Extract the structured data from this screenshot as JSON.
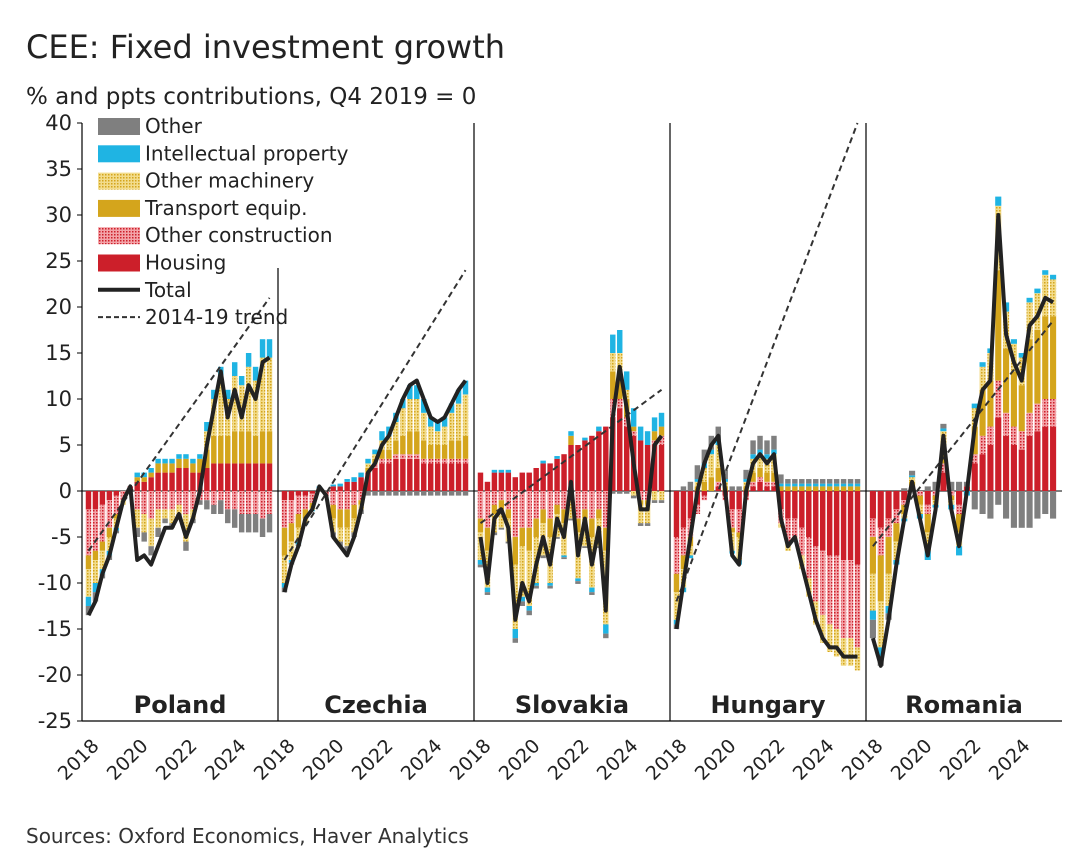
{
  "title": "CEE: Fixed investment growth",
  "subtitle": "% and ppts contributions, Q4 2019 = 0",
  "source": "Sources: Oxford Economics, Haver Analytics",
  "colors": {
    "other": "#7f7f7f",
    "intellectual_property": "#1fb4e3",
    "other_machinery": "#e6c24d",
    "transport_equip": "#d4a51c",
    "other_construction": "#e04a56",
    "housing": "#cc1f2a",
    "total": "#222222",
    "trend": "#333333"
  },
  "chart_data": {
    "type": "bar",
    "stacked": true,
    "title": "CEE: Fixed investment growth",
    "ylabel": "% and ppts contributions, Q4 2019 = 0",
    "ylim": [
      -25,
      40
    ],
    "yticks": [
      "40",
      "35",
      "30",
      "25",
      "20",
      "15",
      "10",
      "5",
      "0",
      "-5",
      "-10",
      "-15",
      "-20",
      "-25"
    ],
    "legend": [
      "Other",
      "Intellectual property",
      "Other machinery",
      "Transport equip.",
      "Other construction",
      "Housing",
      "Total",
      "2014-19 trend"
    ],
    "legend_position": "top-left",
    "panels": [
      {
        "name": "Poland",
        "xticks": [
          "2018",
          "2020",
          "2022",
          "2024"
        ],
        "total": [
          -13.5,
          -12,
          -9,
          -7,
          -4,
          -1,
          0.5,
          -7.5,
          -7,
          -8,
          -6,
          -4,
          -4,
          -2.5,
          -5,
          -3,
          0,
          5,
          9,
          13,
          8,
          11,
          8,
          11.5,
          10,
          14,
          14.5
        ],
        "housing": [
          -2,
          -2,
          -1.5,
          -1,
          -0.5,
          0,
          0.5,
          1,
          1,
          1.5,
          2,
          2,
          2,
          2.5,
          2.5,
          2,
          2,
          2.5,
          3,
          3,
          3,
          3,
          3,
          3,
          3,
          3,
          3
        ],
        "other_construction": [
          -5,
          -4.5,
          -4,
          -3,
          -2,
          -1,
          0,
          -2,
          -2.5,
          -3,
          -2,
          -2,
          -2,
          -1.5,
          -2.5,
          -2,
          -1,
          -1,
          -1.5,
          -1,
          -2,
          -2,
          -2.5,
          -2.5,
          -2.5,
          -3,
          -2.5
        ],
        "transport_equip": [
          -1.5,
          -1,
          -1,
          -1,
          -0.5,
          0,
          0,
          0.5,
          0.5,
          0.5,
          1,
          1,
          1,
          1,
          1,
          1,
          1.5,
          2,
          3,
          3,
          3,
          3.5,
          3.5,
          3.5,
          3,
          3.5,
          3.5
        ],
        "other_machinery": [
          -3,
          -2.5,
          -2,
          -1.5,
          -1,
          -0.5,
          0,
          -2,
          -2,
          -3,
          -2,
          -1,
          -1.5,
          -1,
          -3,
          -1,
          0,
          2,
          4,
          6,
          4,
          6,
          5,
          7,
          6,
          8,
          8
        ],
        "intellectual_property": [
          -1,
          -1,
          -0.5,
          -0.5,
          -0.3,
          0,
          0,
          0.5,
          0.5,
          0.5,
          0.5,
          0.5,
          0.5,
          0.5,
          0.5,
          0.5,
          0.5,
          1,
          1,
          1.5,
          1,
          1.5,
          1,
          1.5,
          1.5,
          2,
          2
        ],
        "other": [
          -1,
          -1,
          -0.5,
          -0.5,
          -0.3,
          0,
          0,
          -1,
          -1,
          -1,
          -1,
          -0.5,
          -0.5,
          -0.5,
          -1,
          -0.5,
          -0.5,
          -1,
          -1,
          -1.5,
          -1.5,
          -2,
          -2,
          -2,
          -2,
          -2,
          -2
        ],
        "trend": [
          -6.5,
          21
        ]
      },
      {
        "name": "Czechia",
        "xticks": [
          "2018",
          "2020",
          "2022",
          "2024"
        ],
        "total": [
          -11,
          -8,
          -6,
          -3,
          -2,
          0.5,
          -0.5,
          -5,
          -6,
          -7,
          -5,
          -2,
          2,
          3,
          5,
          6,
          8,
          10,
          11.5,
          12,
          10,
          8,
          7.5,
          8,
          9.5,
          11,
          12
        ],
        "housing": [
          -1,
          -1,
          -0.5,
          -0.5,
          -0.3,
          0,
          0,
          0.5,
          0.5,
          1,
          1,
          1.5,
          2,
          2.5,
          3,
          3,
          3.5,
          3.5,
          3.5,
          3.5,
          3,
          3,
          3,
          3,
          3,
          3,
          3
        ],
        "other_construction": [
          -3,
          -2.5,
          -2,
          -1.5,
          -1,
          0,
          -0.5,
          -1.5,
          -2,
          -2,
          -1.5,
          -1,
          0,
          0.5,
          0.5,
          0.5,
          0.5,
          0.5,
          0.5,
          0.5,
          0.5,
          0.5,
          0.5,
          0.5,
          0.5,
          0.5,
          0.5
        ],
        "transport_equip": [
          -3,
          -2,
          -1.5,
          -1,
          -0.5,
          0,
          0,
          -1.5,
          -2,
          -2,
          -1.5,
          -0.5,
          0.5,
          0.5,
          1,
          1,
          1.5,
          2,
          2.5,
          2.5,
          2,
          1.5,
          1.5,
          1.5,
          2,
          2,
          2.5
        ],
        "other_machinery": [
          -3,
          -2,
          -1.5,
          -0.5,
          -0.3,
          0.3,
          0,
          -1.5,
          -1.5,
          -2,
          -1.5,
          -0.5,
          0.5,
          0.5,
          1,
          1.5,
          2,
          3,
          3.5,
          3.5,
          3,
          2,
          1.5,
          2,
          3,
          4,
          4.5
        ],
        "intellectual_property": [
          -0.5,
          -0.3,
          -0.3,
          -0.2,
          -0.1,
          0.2,
          0,
          0.2,
          0.3,
          0.3,
          0.5,
          0.5,
          0.5,
          0.5,
          1,
          1,
          1,
          1,
          1.5,
          1.5,
          1.5,
          1,
          1,
          1,
          1,
          1.5,
          1.5
        ],
        "other": [
          -0.5,
          -0.2,
          -0.2,
          0,
          0,
          0,
          0,
          -0.5,
          -0.5,
          -0.5,
          -0.5,
          -0.5,
          -0.5,
          -0.5,
          -0.5,
          -0.5,
          -0.5,
          -0.5,
          -0.5,
          -0.5,
          -0.5,
          -0.5,
          -0.5,
          -0.5,
          -0.5,
          -0.5,
          -0.5
        ],
        "trend": [
          -7.5,
          24
        ]
      },
      {
        "name": "Slovakia",
        "xticks": [
          "2018",
          "2020",
          "2022",
          "2024"
        ],
        "total": [
          -5,
          -10,
          -3,
          -2,
          -4,
          -14,
          -10,
          -12,
          -8,
          -5,
          -8,
          -3,
          -5,
          1,
          -7,
          -3,
          -8,
          -4,
          -13,
          8,
          13.5,
          9,
          3,
          -2,
          -2,
          5,
          6
        ],
        "housing": [
          2,
          1,
          2,
          2,
          2,
          1.5,
          2,
          2,
          2.5,
          3,
          3,
          3.5,
          4,
          5,
          5,
          5.5,
          6,
          6.5,
          7,
          8,
          9,
          7,
          6,
          5.5,
          5,
          5,
          5
        ],
        "other_construction": [
          -3,
          -4,
          -1.5,
          -1,
          -2,
          -5,
          -4,
          -4,
          -3,
          -2,
          -3,
          -1.5,
          -2,
          -1,
          -3,
          -2,
          -3,
          -2,
          -4,
          2,
          1,
          1,
          0.5,
          -1,
          -1,
          0.5,
          1
        ],
        "transport_equip": [
          -1.5,
          -2.5,
          -1,
          -1,
          -1,
          -3,
          -2,
          -2.5,
          -2,
          -1.5,
          -2,
          -1,
          -1.5,
          1,
          -1.5,
          -1,
          -2,
          -1,
          -2.5,
          3,
          3,
          2,
          0.5,
          -0.5,
          -0.5,
          1,
          1
        ],
        "other_machinery": [
          -3,
          -4,
          -2,
          -2,
          -2.5,
          -7,
          -5.5,
          -6,
          -5,
          -3.5,
          -5,
          -2.5,
          -3.5,
          -2,
          -5,
          -3,
          -5.5,
          -3,
          -8,
          2,
          2,
          1,
          -0.5,
          -2,
          -2,
          -1,
          -1
        ],
        "intellectual_property": [
          -0.5,
          -0.5,
          0.3,
          0.3,
          0.3,
          -1,
          -0.5,
          -0.5,
          -0.3,
          0.3,
          -0.3,
          0.3,
          -0.2,
          0.5,
          -0.3,
          0.3,
          -0.5,
          0.5,
          -1,
          2,
          2.5,
          2,
          2,
          1.5,
          1.5,
          1.5,
          1.5
        ],
        "other": [
          -0.3,
          -0.3,
          -0.3,
          -0.2,
          -0.2,
          -0.5,
          -0.5,
          -0.5,
          -0.3,
          -0.3,
          -0.3,
          -0.2,
          -0.2,
          -0.2,
          -0.3,
          -0.2,
          -0.3,
          -0.2,
          -0.5,
          -0.3,
          -0.3,
          -0.3,
          -0.3,
          -0.3,
          -0.3,
          -0.3,
          -0.3
        ],
        "trend": [
          -3.5,
          11
        ]
      },
      {
        "name": "Hungary",
        "xticks": [
          "2018",
          "2020",
          "2022",
          "2024"
        ],
        "total": [
          -15,
          -10,
          -5,
          0,
          3,
          5,
          6,
          0,
          -7,
          -8,
          0,
          3,
          4,
          3,
          4,
          -3,
          -6,
          -5,
          -8,
          -11,
          -14,
          -16,
          -17,
          -17,
          -18,
          -18,
          -18
        ],
        "housing": [
          -5,
          -4,
          -3,
          -1.5,
          -0.5,
          0,
          0.5,
          -0.5,
          -2,
          -2,
          -0.5,
          0.5,
          1,
          0.5,
          0.5,
          -2,
          -3,
          -3,
          -4,
          -5,
          -6,
          -6.5,
          -7,
          -7,
          -7.5,
          -7.5,
          -8
        ],
        "other_construction": [
          -4,
          -3,
          -2,
          -1,
          -0.5,
          0,
          0.5,
          -0.5,
          -2,
          -2.5,
          -0.5,
          0.5,
          0.5,
          0.5,
          0.5,
          -1.5,
          -2.5,
          -2,
          -3,
          -4.5,
          -6,
          -7,
          -7.5,
          -8,
          -8.5,
          -8.5,
          -9
        ],
        "transport_equip": [
          -2,
          -1.5,
          -1,
          0.5,
          1,
          1.5,
          1.5,
          0.5,
          -0.5,
          -0.5,
          0.5,
          1,
          1,
          1,
          1,
          0.5,
          0.5,
          0.5,
          0.5,
          0.5,
          0.5,
          0.5,
          0.5,
          0.5,
          0.5,
          0.5,
          0.5
        ],
        "other_machinery": [
          -3,
          -2,
          -1,
          0.5,
          1.5,
          2.5,
          2.5,
          0.5,
          -2,
          -2.5,
          0.5,
          1.5,
          1.5,
          1.5,
          2,
          -0.5,
          -1,
          -0.5,
          -1.5,
          -2,
          -2.5,
          -3,
          -3,
          -3,
          -3,
          -3,
          -2.5
        ],
        "intellectual_property": [
          -0.5,
          -0.5,
          -0.3,
          0.3,
          0.5,
          0.5,
          0.5,
          0.3,
          -0.3,
          -0.5,
          0.3,
          0.5,
          0.5,
          0.5,
          0.5,
          0.3,
          0.3,
          0.3,
          0.3,
          0.3,
          0.3,
          0.3,
          0.3,
          0.3,
          0.3,
          0.3,
          0.3
        ],
        "other": [
          -0.5,
          0.5,
          1,
          1.5,
          1.5,
          1.5,
          1.5,
          1,
          0.5,
          0.5,
          1,
          1.5,
          1.5,
          1.5,
          1.5,
          1,
          0.5,
          0.5,
          0.5,
          0.5,
          0.5,
          0.5,
          0.5,
          0.5,
          0.5,
          0.5,
          0.5
        ],
        "trend": [
          -12,
          40
        ]
      },
      {
        "name": "Romania",
        "xticks": [
          "2018",
          "2020",
          "2022",
          "2024"
        ],
        "total": [
          -16,
          -19,
          -14,
          -8,
          -3,
          1,
          -3,
          -7,
          -2,
          6,
          -2,
          -6,
          0,
          7,
          11,
          12,
          30,
          17,
          14,
          12,
          18,
          19,
          21,
          20.5
        ],
        "housing": [
          -3,
          -4,
          -3,
          -2,
          -1,
          0.5,
          0,
          -1.5,
          0,
          2,
          0,
          -1.5,
          0.5,
          3,
          4,
          5,
          8,
          6,
          5,
          4.5,
          6,
          6.5,
          7,
          7
        ],
        "other_construction": [
          -2,
          -3,
          -2,
          -1.5,
          -0.5,
          0,
          -0.5,
          -1,
          -0.5,
          1,
          -0.5,
          -1,
          0,
          1,
          2,
          2,
          4,
          2.5,
          2,
          2,
          2.5,
          3,
          3,
          3
        ],
        "transport_equip": [
          -4,
          -5,
          -4,
          -2,
          -1,
          0.5,
          -1,
          -2,
          -0.5,
          2,
          -0.5,
          -2,
          0,
          3,
          5,
          5,
          12,
          7,
          6,
          5,
          8,
          8,
          9,
          9
        ],
        "other_machinery": [
          -4,
          -5,
          -3.5,
          -2,
          -0.5,
          0.5,
          -1,
          -2,
          -0.5,
          1.5,
          -0.5,
          -1.5,
          0,
          2,
          2.5,
          3,
          7,
          4,
          3,
          3,
          4,
          4,
          4.5,
          4
        ],
        "intellectual_property": [
          -1,
          -1,
          -0.8,
          -0.5,
          -0.3,
          0.2,
          -0.5,
          -1,
          -0.3,
          0.3,
          -0.5,
          -1,
          -0.5,
          0.5,
          0.5,
          0.5,
          1,
          1,
          0.5,
          0.5,
          0.5,
          0.5,
          0.5,
          0.5
        ],
        "other": [
          -2,
          -1,
          -0.7,
          0,
          0.3,
          0.5,
          0,
          0.5,
          1,
          0.5,
          1,
          1,
          0.5,
          -2,
          -2.5,
          -3,
          -1.5,
          -3,
          -4,
          -4,
          -4,
          -3,
          -2.5,
          -3
        ],
        "trend": [
          -6,
          18.5
        ]
      }
    ]
  }
}
